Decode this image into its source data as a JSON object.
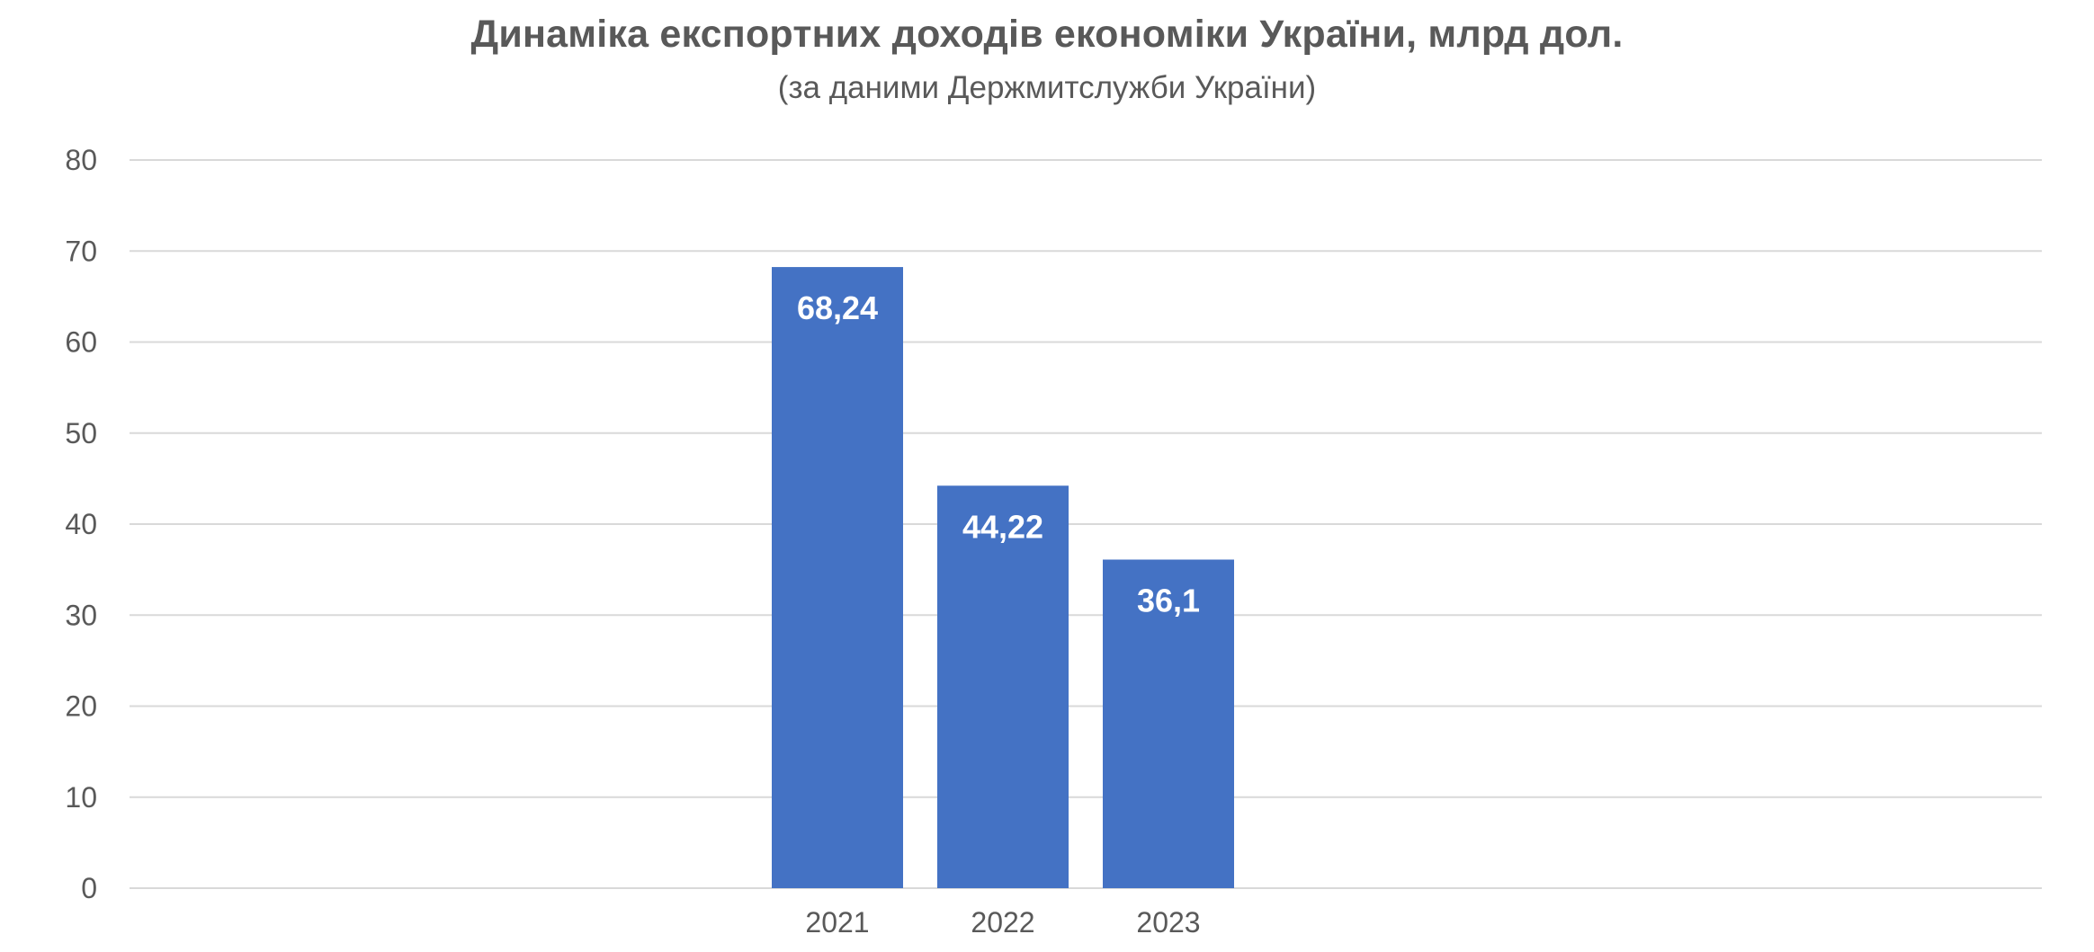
{
  "chart_data": {
    "type": "bar",
    "title": "Динаміка експортних доходів економіки України, млрд дол.",
    "subtitle": "(за даними Держмитслужби України)",
    "categories": [
      "2021",
      "2022",
      "2023"
    ],
    "values": [
      68.24,
      44.22,
      36.1
    ],
    "data_labels": [
      "68,24",
      "44,22",
      "36,1"
    ],
    "ylim": [
      0,
      80
    ],
    "yticks": [
      0,
      10,
      20,
      30,
      40,
      50,
      60,
      70,
      80
    ],
    "grid": true,
    "legend": "none",
    "bar_color": "#4472C4",
    "grid_color": "#D9D9D9",
    "text_color": "#595959"
  }
}
